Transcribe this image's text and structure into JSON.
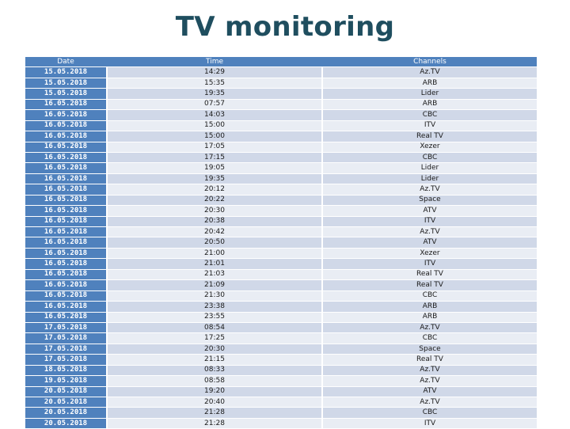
{
  "title": "TV monitoring",
  "table": {
    "headers": {
      "date": "Date",
      "time": "Time",
      "channels": "Channels"
    },
    "rows": [
      {
        "date": "15.05.2018",
        "time": "14:29",
        "channel": "Az.TV"
      },
      {
        "date": "15.05.2018",
        "time": "15:35",
        "channel": "ARB"
      },
      {
        "date": "15.05.2018",
        "time": "19:35",
        "channel": "Lider"
      },
      {
        "date": "16.05.2018",
        "time": "07:57",
        "channel": "ARB"
      },
      {
        "date": "16.05.2018",
        "time": "14:03",
        "channel": "CBC"
      },
      {
        "date": "16.05.2018",
        "time": "15:00",
        "channel": "ITV"
      },
      {
        "date": "16.05.2018",
        "time": "15:00",
        "channel": "Real TV"
      },
      {
        "date": "16.05.2018",
        "time": "17:05",
        "channel": "Xezer"
      },
      {
        "date": "16.05.2018",
        "time": "17:15",
        "channel": "CBC"
      },
      {
        "date": "16.05.2018",
        "time": "19:05",
        "channel": "Lider"
      },
      {
        "date": "16.05.2018",
        "time": "19:35",
        "channel": "Lider"
      },
      {
        "date": "16.05.2018",
        "time": "20:12",
        "channel": "Az.TV"
      },
      {
        "date": "16.05.2018",
        "time": "20:22",
        "channel": "Space"
      },
      {
        "date": "16.05.2018",
        "time": "20:30",
        "channel": "ATV"
      },
      {
        "date": "16.05.2018",
        "time": "20:38",
        "channel": "ITV"
      },
      {
        "date": "16.05.2018",
        "time": "20:42",
        "channel": "Az.TV"
      },
      {
        "date": "16.05.2018",
        "time": "20:50",
        "channel": "ATV"
      },
      {
        "date": "16.05.2018",
        "time": "21:00",
        "channel": "Xezer"
      },
      {
        "date": "16.05.2018",
        "time": "21:01",
        "channel": "ITV"
      },
      {
        "date": "16.05.2018",
        "time": "21:03",
        "channel": "Real TV"
      },
      {
        "date": "16.05.2018",
        "time": "21:09",
        "channel": "Real TV"
      },
      {
        "date": "16.05.2018",
        "time": "21:30",
        "channel": "CBC"
      },
      {
        "date": "16.05.2018",
        "time": "23:38",
        "channel": "ARB"
      },
      {
        "date": "16.05.2018",
        "time": "23:55",
        "channel": "ARB"
      },
      {
        "date": "17.05.2018",
        "time": "08:54",
        "channel": "Az.TV"
      },
      {
        "date": "17.05.2018",
        "time": "17:25",
        "channel": "CBC"
      },
      {
        "date": "17.05.2018",
        "time": "20:30",
        "channel": "Space"
      },
      {
        "date": "17.05.2018",
        "time": "21:15",
        "channel": "Real TV"
      },
      {
        "date": "18.05.2018",
        "time": "08:33",
        "channel": "Az.TV"
      },
      {
        "date": "19.05.2018",
        "time": "08:58",
        "channel": "Az.TV"
      },
      {
        "date": "20.05.2018",
        "time": "19:20",
        "channel": "ATV"
      },
      {
        "date": "20.05.2018",
        "time": "20:40",
        "channel": "Az.TV"
      },
      {
        "date": "20.05.2018",
        "time": "21:28",
        "channel": "CBC"
      },
      {
        "date": "20.05.2018",
        "time": "21:28",
        "channel": "ITV"
      }
    ]
  },
  "colors": {
    "title": "#1f4e5f",
    "header_bg": "#4f81bd",
    "row_a": "#d0d8e8",
    "row_b": "#e9edf4"
  }
}
